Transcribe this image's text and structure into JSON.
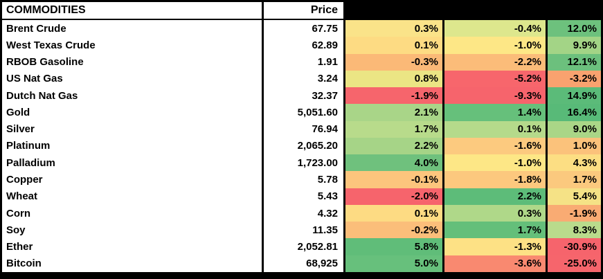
{
  "table": {
    "header": {
      "commodities": "COMMODITIES",
      "price": "Price",
      "change_columns": [
        "",
        "",
        ""
      ]
    },
    "rows": [
      {
        "name": "Brent Crude",
        "price": "67.75",
        "changes": [
          {
            "value": "0.3%",
            "bg": "#FAE389"
          },
          {
            "value": "-0.4%",
            "bg": "#DDE78D"
          },
          {
            "value": "12.0%",
            "bg": "#6DC17D"
          }
        ]
      },
      {
        "name": "West Texas Crude",
        "price": "62.89",
        "changes": [
          {
            "value": "0.1%",
            "bg": "#FDDB83"
          },
          {
            "value": "-1.0%",
            "bg": "#FDE786"
          },
          {
            "value": "9.9%",
            "bg": "#A3D486"
          }
        ]
      },
      {
        "name": "RBOB Gasoline",
        "price": "1.91",
        "changes": [
          {
            "value": "-0.3%",
            "bg": "#FBB977"
          },
          {
            "value": "-2.2%",
            "bg": "#FBBC79"
          },
          {
            "value": "12.1%",
            "bg": "#6CC07D"
          }
        ]
      },
      {
        "name": "US Nat Gas",
        "price": "3.24",
        "changes": [
          {
            "value": "0.8%",
            "bg": "#EBE584"
          },
          {
            "value": "-5.2%",
            "bg": "#F7666C"
          },
          {
            "value": "-3.2%",
            "bg": "#F9A26F"
          }
        ]
      },
      {
        "name": "Dutch Nat Gas",
        "price": "32.37",
        "changes": [
          {
            "value": "-1.9%",
            "bg": "#F6656C"
          },
          {
            "value": "-9.3%",
            "bg": "#F6646C"
          },
          {
            "value": "14.9%",
            "bg": "#5BBB79"
          }
        ]
      },
      {
        "name": "Gold",
        "price": "5,051.60",
        "changes": [
          {
            "value": "2.1%",
            "bg": "#A9D588"
          },
          {
            "value": "1.4%",
            "bg": "#66C07B"
          },
          {
            "value": "16.4%",
            "bg": "#58BA78"
          }
        ]
      },
      {
        "name": "Silver",
        "price": "76.94",
        "changes": [
          {
            "value": "1.7%",
            "bg": "#B8DB8B"
          },
          {
            "value": "0.1%",
            "bg": "#B5DA8B"
          },
          {
            "value": "9.0%",
            "bg": "#AAD687"
          }
        ]
      },
      {
        "name": "Platinum",
        "price": "2,065.20",
        "changes": [
          {
            "value": "2.2%",
            "bg": "#A6D487"
          },
          {
            "value": "-1.6%",
            "bg": "#FCCA7F"
          },
          {
            "value": "1.0%",
            "bg": "#FBC27B"
          }
        ]
      },
      {
        "name": "Palladium",
        "price": "1,723.00",
        "changes": [
          {
            "value": "4.0%",
            "bg": "#6FC17D"
          },
          {
            "value": "-1.0%",
            "bg": "#FDE786"
          },
          {
            "value": "4.3%",
            "bg": "#FCDE83"
          }
        ]
      },
      {
        "name": "Copper",
        "price": "5.78",
        "changes": [
          {
            "value": "-0.1%",
            "bg": "#FCC57D"
          },
          {
            "value": "-1.8%",
            "bg": "#FCC87E"
          },
          {
            "value": "1.7%",
            "bg": "#FBC97E"
          }
        ]
      },
      {
        "name": "Wheat",
        "price": "5.43",
        "changes": [
          {
            "value": "-2.0%",
            "bg": "#F6646C"
          },
          {
            "value": "2.2%",
            "bg": "#5DBC79"
          },
          {
            "value": "5.4%",
            "bg": "#F5E286"
          }
        ]
      },
      {
        "name": "Corn",
        "price": "4.32",
        "changes": [
          {
            "value": "0.1%",
            "bg": "#FDDB83"
          },
          {
            "value": "0.3%",
            "bg": "#AFD889"
          },
          {
            "value": "-1.9%",
            "bg": "#F9AB73"
          }
        ]
      },
      {
        "name": "Soy",
        "price": "11.35",
        "changes": [
          {
            "value": "-0.2%",
            "bg": "#FBBE7A"
          },
          {
            "value": "1.7%",
            "bg": "#64BF7A"
          },
          {
            "value": "8.3%",
            "bg": "#B9DB8C"
          }
        ]
      },
      {
        "name": "Ether",
        "price": "2,052.81",
        "changes": [
          {
            "value": "5.8%",
            "bg": "#60BD79"
          },
          {
            "value": "-1.3%",
            "bg": "#FDE185"
          },
          {
            "value": "-30.9%",
            "bg": "#F6646C"
          }
        ]
      },
      {
        "name": "Bitcoin",
        "price": "68,925",
        "changes": [
          {
            "value": "5.0%",
            "bg": "#67C07C"
          },
          {
            "value": "-3.6%",
            "bg": "#F98970"
          },
          {
            "value": "-25.0%",
            "bg": "#F6656C"
          }
        ]
      }
    ]
  },
  "colors": {
    "border": "#000000",
    "cell_text": "#000000",
    "header_bg": "#FFFFFF",
    "header_band_bg": "#000000",
    "heatmap_min_red": "#F6646C",
    "heatmap_mid_yellow": "#FDE786",
    "heatmap_max_green": "#5BBB79"
  }
}
